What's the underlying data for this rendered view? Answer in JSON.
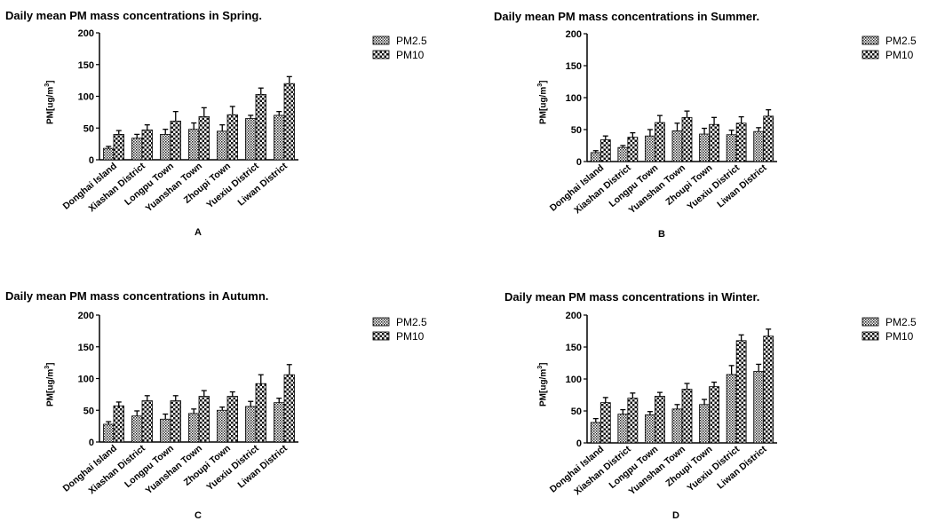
{
  "chart_data": [
    {
      "type": "bar",
      "title": "Daily mean PM mass concentrations in Spring.",
      "ylabel": "PM[ug/m3]",
      "ylabel_base": "PM[ug/m",
      "ylabel_sup": "3",
      "ylabel_close": "]",
      "panel_label": "A",
      "ylim": [
        0,
        200
      ],
      "yticks": [
        0,
        50,
        100,
        150,
        200
      ],
      "categories": [
        "Donghai Island",
        "Xiashan District",
        "Longpu Town",
        "Yuanshan Town",
        "Zhoupi Town",
        "Yuexiu District",
        "Liwan District"
      ],
      "series": [
        {
          "name": "PM2.5",
          "values": [
            18,
            34,
            40,
            48,
            45,
            65,
            70
          ],
          "errors": [
            3,
            6,
            8,
            10,
            10,
            5,
            6
          ]
        },
        {
          "name": "PM10",
          "values": [
            40,
            47,
            61,
            68,
            71,
            103,
            120
          ],
          "errors": [
            6,
            8,
            15,
            14,
            13,
            10,
            11
          ]
        }
      ],
      "legend_position": "top-right",
      "grid": false
    },
    {
      "type": "bar",
      "title": "Daily mean PM mass concentrations in Summer.",
      "ylabel": "PM[ug/m3]",
      "ylabel_base": "PM[ug/m",
      "ylabel_sup": "3",
      "ylabel_close": "]",
      "panel_label": "B",
      "ylim": [
        0,
        200
      ],
      "yticks": [
        0,
        50,
        100,
        150,
        200
      ],
      "categories": [
        "Donghai Island",
        "Xiashan District",
        "Longpu Town",
        "Yuanshan Town",
        "Zhoupi Town",
        "Yuexiu District",
        "Liwan District"
      ],
      "series": [
        {
          "name": "PM2.5",
          "values": [
            14,
            22,
            40,
            48,
            43,
            42,
            47
          ],
          "errors": [
            3,
            3,
            10,
            12,
            9,
            7,
            6
          ]
        },
        {
          "name": "PM10",
          "values": [
            34,
            38,
            61,
            69,
            58,
            60,
            71
          ],
          "errors": [
            6,
            7,
            11,
            10,
            11,
            10,
            10
          ]
        }
      ],
      "legend_position": "top-right",
      "grid": false
    },
    {
      "type": "bar",
      "title": "Daily mean PM mass concentrations in Autumn.",
      "ylabel": "PM[ug/m3]",
      "ylabel_base": "PM[ug/m",
      "ylabel_sup": "3",
      "ylabel_close": "]",
      "panel_label": "C",
      "ylim": [
        0,
        200
      ],
      "yticks": [
        0,
        50,
        100,
        150,
        200
      ],
      "categories": [
        "Donghai Island",
        "Xiashan District",
        "Longpu Town",
        "Yuanshan Town",
        "Zhoupi Town",
        "Yuexiu District",
        "Liwan District"
      ],
      "series": [
        {
          "name": "PM2.5",
          "values": [
            28,
            41,
            36,
            45,
            50,
            56,
            62
          ],
          "errors": [
            4,
            8,
            8,
            7,
            5,
            8,
            7
          ]
        },
        {
          "name": "PM10",
          "values": [
            57,
            65,
            65,
            72,
            72,
            92,
            106
          ],
          "errors": [
            6,
            8,
            8,
            9,
            7,
            14,
            16
          ]
        }
      ],
      "legend_position": "top-right",
      "grid": false
    },
    {
      "type": "bar",
      "title": "Daily mean PM mass concentrations in Winter.",
      "ylabel": "PM[ug/m3]",
      "ylabel_base": "PM[ug/m",
      "ylabel_sup": "3",
      "ylabel_close": "]",
      "panel_label": "D",
      "ylim": [
        0,
        200
      ],
      "yticks": [
        0,
        50,
        100,
        150,
        200
      ],
      "categories": [
        "Donghai Island",
        "Xiashan District",
        "Longpu Town",
        "Yuanshan Town",
        "Zhoupi Town",
        "Yuexiu District",
        "Liwan District"
      ],
      "series": [
        {
          "name": "PM2.5",
          "values": [
            32,
            45,
            44,
            53,
            60,
            107,
            112
          ],
          "errors": [
            6,
            7,
            5,
            7,
            8,
            14,
            11
          ]
        },
        {
          "name": "PM10",
          "values": [
            63,
            70,
            73,
            84,
            88,
            160,
            167
          ],
          "errors": [
            8,
            8,
            6,
            9,
            7,
            9,
            11
          ]
        }
      ],
      "legend_position": "top-right",
      "grid": false
    }
  ]
}
